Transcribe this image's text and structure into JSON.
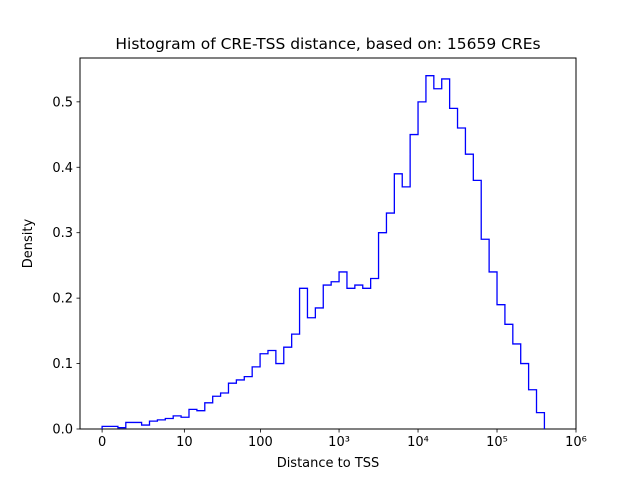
{
  "figure": {
    "background_color": "#ffffff",
    "frame_color": "#000000"
  },
  "chart_data": {
    "type": "histogram-step",
    "title": "Histogram of CRE-TSS distance, based on: 15659 CREs",
    "xlabel": "Distance to TSS",
    "ylabel": "Density",
    "line_color": "#0000ff",
    "x_scale_note": "log-like axis, plotted as t = log10(distance+1)",
    "xlim_t": [
      -0.28,
      6.0
    ],
    "ylim": [
      0.0,
      0.567
    ],
    "x_ticks": [
      {
        "t": 0.0,
        "label": "0"
      },
      {
        "t": 1.0414,
        "label": "10"
      },
      {
        "t": 2.0043,
        "label": "100"
      },
      {
        "t": 3.0,
        "label": "10³"
      },
      {
        "t": 4.0,
        "label": "10⁴"
      },
      {
        "t": 5.0,
        "label": "10⁵"
      },
      {
        "t": 6.0,
        "label": "10⁶"
      }
    ],
    "y_ticks": [
      {
        "v": 0.0,
        "label": "0.0"
      },
      {
        "v": 0.1,
        "label": "0.1"
      },
      {
        "v": 0.2,
        "label": "0.2"
      },
      {
        "v": 0.3,
        "label": "0.3"
      },
      {
        "v": 0.4,
        "label": "0.4"
      },
      {
        "v": 0.5,
        "label": "0.5"
      }
    ],
    "bins_t_start": 0.0,
    "bin_width_t": 0.1,
    "densities": [
      0.004,
      0.004,
      0.002,
      0.01,
      0.01,
      0.006,
      0.012,
      0.014,
      0.016,
      0.02,
      0.018,
      0.03,
      0.028,
      0.04,
      0.05,
      0.055,
      0.07,
      0.075,
      0.08,
      0.095,
      0.115,
      0.12,
      0.1,
      0.125,
      0.145,
      0.215,
      0.17,
      0.185,
      0.22,
      0.225,
      0.24,
      0.215,
      0.22,
      0.215,
      0.23,
      0.3,
      0.33,
      0.39,
      0.37,
      0.45,
      0.5,
      0.54,
      0.52,
      0.535,
      0.49,
      0.46,
      0.42,
      0.38,
      0.29,
      0.24,
      0.19,
      0.16,
      0.13,
      0.1,
      0.06,
      0.025
    ]
  }
}
